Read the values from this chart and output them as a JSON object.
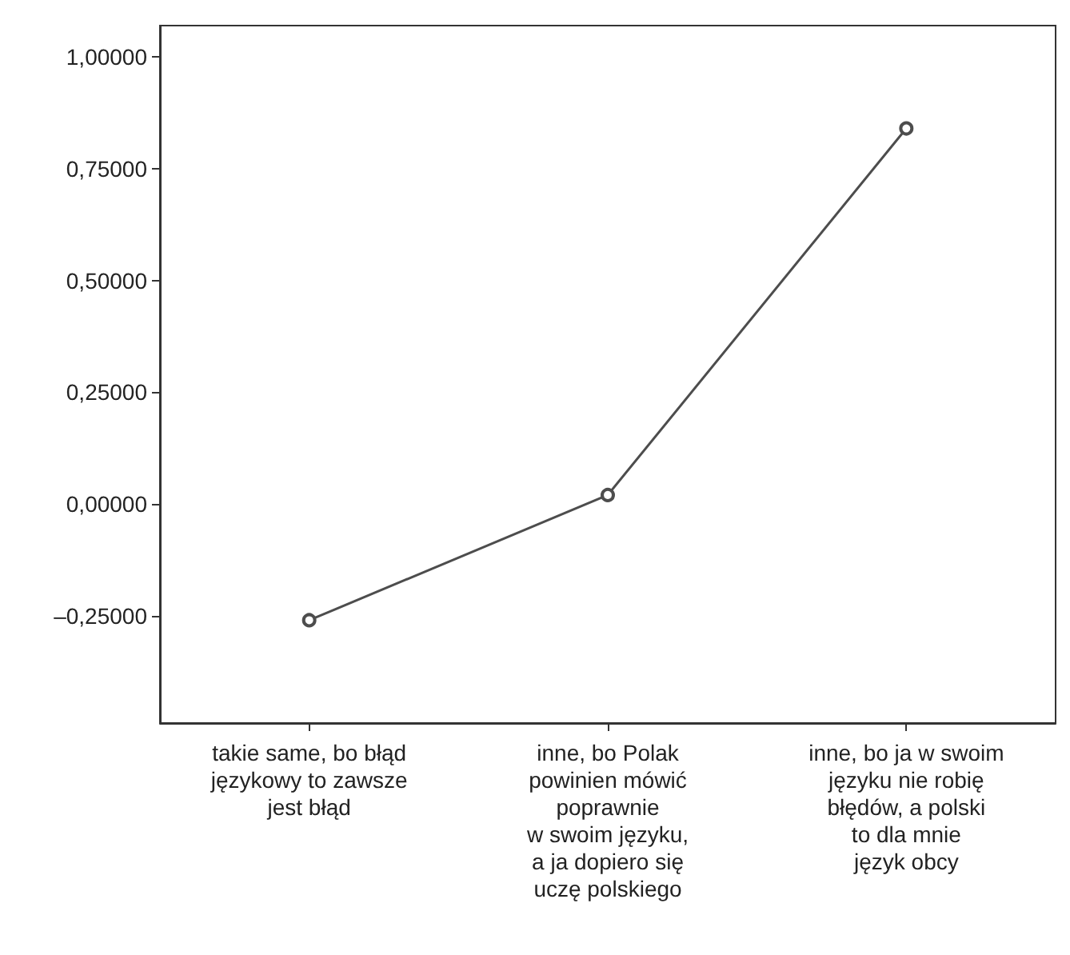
{
  "chart_data": {
    "type": "line",
    "categories": [
      "takie same, bo błąd\njęzykowy to zawsze\njest błąd",
      "inne, bo Polak\npowinien mówić\npoprawnie\nw swoim języku,\na ja dopiero się\nuczę polskiego",
      "inne, bo ja w swoim\njęzyku nie robię\nbłędów, a polski\nto dla mnie\njęzyk obcy"
    ],
    "series": [
      {
        "color": "#4d4d4d",
        "values": [
          -0.26,
          0.02,
          0.84
        ]
      }
    ],
    "ylim": [
      -0.49,
      1.07
    ],
    "yticks": [
      {
        "value": -0.25,
        "label": "–0,25000"
      },
      {
        "value": 0,
        "label": "0,00000"
      },
      {
        "value": 0.25,
        "label": "0,25000"
      },
      {
        "value": 0.5,
        "label": "0,50000"
      },
      {
        "value": 0.75,
        "label": "0,75000"
      },
      {
        "value": 1,
        "label": "1,00000"
      }
    ],
    "grid": false,
    "marker": "circle",
    "line_style": "solid"
  }
}
